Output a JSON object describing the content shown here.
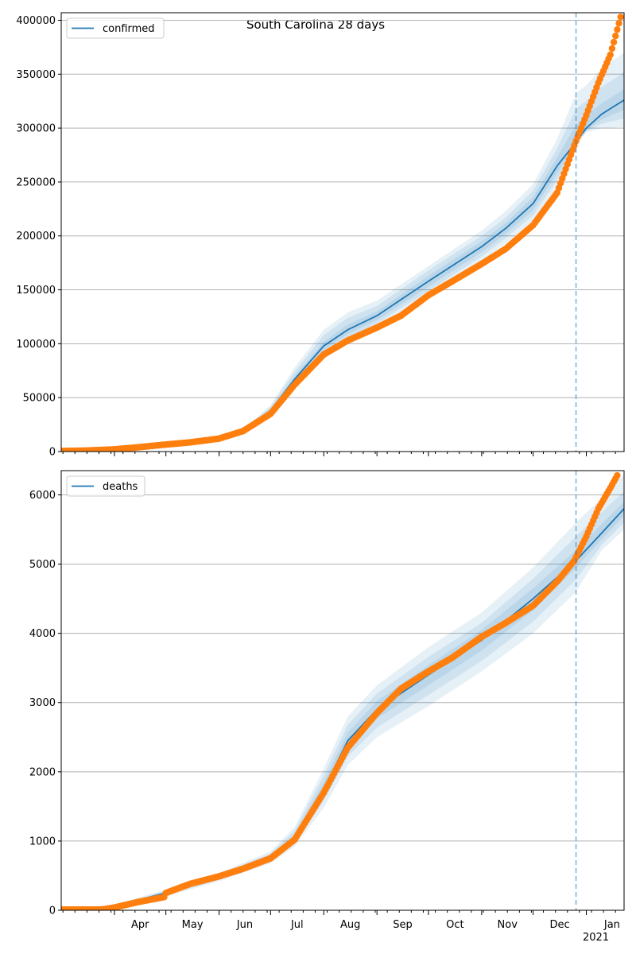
{
  "figure": {
    "suptitle": "South Carolina 28 days"
  },
  "chart_data": [
    {
      "type": "line",
      "legend": {
        "label": "confirmed",
        "placement": "upper-left"
      },
      "xlim": [
        "2020-03-01",
        "2021-01-23"
      ],
      "ylim": [
        0,
        407000
      ],
      "yticks": [
        0,
        50000,
        100000,
        150000,
        200000,
        250000,
        300000,
        350000,
        400000
      ],
      "ytick_labels": [
        "0",
        "50000",
        "100000",
        "150000",
        "200000",
        "250000",
        "300000",
        "350000",
        "400000"
      ],
      "grid": "y",
      "forecast_start": "2020-12-26",
      "model": {
        "color": "#1f77b4",
        "dates": [
          "2020-03-01",
          "2020-04-01",
          "2020-05-01",
          "2020-06-01",
          "2020-06-15",
          "2020-07-01",
          "2020-07-15",
          "2020-08-01",
          "2020-08-15",
          "2020-09-01",
          "2020-10-01",
          "2020-11-01",
          "2020-11-15",
          "2020-12-01",
          "2020-12-15",
          "2020-12-26",
          "2021-01-01",
          "2021-01-10",
          "2021-01-23"
        ],
        "median": [
          500,
          3000,
          6500,
          12500,
          19000,
          38000,
          67000,
          98000,
          113000,
          126000,
          158000,
          190000,
          207000,
          230000,
          265000,
          287000,
          300000,
          313000,
          326000
        ],
        "bands": [
          {
            "lower": [
              400,
              2700,
              6000,
              11500,
              17500,
              33000,
              58000,
              86000,
              101000,
              115000,
              145000,
              177000,
              193000,
              214000,
              246000,
              284000,
              296000,
              300000,
              301000
            ],
            "upper": [
              600,
              3300,
              7000,
              13500,
              20500,
              43000,
              78000,
              113000,
              129000,
              140000,
              172000,
              205000,
              223000,
              248000,
              290000,
              332000,
              340000,
              355000,
              370000
            ]
          },
          {
            "lower": [
              420,
              2780,
              6150,
              11800,
              18000,
              34500,
              61000,
              90000,
              105000,
              119000,
              149000,
              181000,
              198000,
              219000,
              252000,
              285000,
              297000,
              304000,
              309000
            ],
            "upper": [
              580,
              3220,
              6850,
              13200,
              20000,
              41500,
              74000,
              108000,
              124000,
              135000,
              168000,
              200000,
              217000,
              242000,
              281000,
              318000,
              325000,
              338000,
              352000
            ]
          },
          {
            "lower": [
              450,
              2870,
              6300,
              12100,
              18500,
              36000,
              64000,
              94000,
              109000,
              122000,
              153000,
              185000,
              202000,
              224000,
              258000,
              286000,
              298000,
              308000,
              317000
            ],
            "upper": [
              550,
              3130,
              6700,
              12900,
              19500,
              40000,
              70000,
              102000,
              118000,
              130000,
              163000,
              195000,
              212000,
              236000,
              273000,
              303000,
              312000,
              323000,
              336000
            ]
          }
        ]
      },
      "observed": {
        "color": "#ff7f0e",
        "dates": [
          "2020-03-01",
          "2020-03-15",
          "2020-04-01",
          "2020-04-15",
          "2020-05-01",
          "2020-05-15",
          "2020-06-01",
          "2020-06-15",
          "2020-07-01",
          "2020-07-15",
          "2020-08-01",
          "2020-08-15",
          "2020-09-01",
          "2020-09-15",
          "2020-10-01",
          "2020-10-15",
          "2020-11-01",
          "2020-11-15",
          "2020-12-01",
          "2020-12-15",
          "2020-12-25",
          "2021-01-01",
          "2021-01-08",
          "2021-01-15",
          "2021-01-21"
        ],
        "values": [
          500,
          900,
          2000,
          4000,
          6500,
          8500,
          12000,
          19000,
          35000,
          62000,
          90000,
          103000,
          115000,
          126000,
          145000,
          158000,
          174000,
          188000,
          210000,
          240000,
          284000,
          312000,
          342000,
          368000,
          403000
        ]
      }
    },
    {
      "type": "line",
      "legend": {
        "label": "deaths",
        "placement": "upper-left"
      },
      "xlim": [
        "2020-03-01",
        "2021-01-23"
      ],
      "ylim": [
        0,
        6350
      ],
      "yticks": [
        0,
        1000,
        2000,
        3000,
        4000,
        5000,
        6000
      ],
      "ytick_labels": [
        "0",
        "1000",
        "2000",
        "3000",
        "4000",
        "5000",
        "6000"
      ],
      "grid": "y",
      "forecast_start": "2020-12-26",
      "xtick_labels": [
        "Apr",
        "May",
        "Jun",
        "Jul",
        "Aug",
        "Sep",
        "Oct",
        "Nov",
        "Dec",
        "Jan"
      ],
      "xtick_dates": [
        "2020-04-01",
        "2020-05-01",
        "2020-06-01",
        "2020-07-01",
        "2020-08-01",
        "2020-09-01",
        "2020-10-01",
        "2020-11-01",
        "2020-12-01",
        "2021-01-01"
      ],
      "year_label": "2021",
      "model": {
        "color": "#1f77b4",
        "dates": [
          "2020-03-01",
          "2020-04-01",
          "2020-05-01",
          "2020-06-01",
          "2020-07-01",
          "2020-07-15",
          "2020-08-01",
          "2020-08-15",
          "2020-09-01",
          "2020-10-01",
          "2020-11-01",
          "2020-12-01",
          "2020-12-26",
          "2021-01-10",
          "2021-01-23"
        ],
        "median": [
          10,
          60,
          250,
          480,
          760,
          1050,
          1750,
          2450,
          2900,
          3400,
          3900,
          4500,
          5050,
          5450,
          5800
        ],
        "bands": [
          {
            "lower": [
              5,
              40,
              200,
              420,
              680,
              920,
              1480,
              2100,
              2500,
              2950,
              3450,
              4000,
              4600,
              5200,
              5500
            ],
            "upper": [
              20,
              80,
              300,
              540,
              850,
              1200,
              2050,
              2800,
              3250,
              3800,
              4300,
              4950,
              5600,
              5950,
              6300
            ]
          },
          {
            "lower": [
              6,
              48,
              218,
              440,
              708,
              965,
              1580,
              2220,
              2640,
              3110,
              3600,
              4170,
              4780,
              5280,
              5600
            ],
            "upper": [
              17,
              74,
              282,
              520,
              820,
              1150,
              1950,
              2680,
              3130,
              3660,
              4150,
              4790,
              5400,
              5750,
              6050
            ]
          },
          {
            "lower": [
              8,
              53,
              232,
              458,
              732,
              1005,
              1660,
              2330,
              2770,
              3250,
              3750,
              4330,
              4950,
              5360,
              5700
            ],
            "upper": [
              14,
              68,
              268,
              502,
              790,
              1100,
              1850,
              2570,
              3020,
              3540,
              4050,
              4650,
              5200,
              5580,
              5900
            ]
          }
        ]
      },
      "observed": {
        "color": "#ff7f0e",
        "dates": [
          "2020-03-01",
          "2020-03-25",
          "2020-04-01",
          "2020-04-15",
          "2020-04-30",
          "2020-05-01",
          "2020-05-15",
          "2020-06-01",
          "2020-06-15",
          "2020-07-01",
          "2020-07-15",
          "2020-08-01",
          "2020-08-15",
          "2020-09-01",
          "2020-09-15",
          "2020-10-01",
          "2020-10-15",
          "2020-11-01",
          "2020-11-15",
          "2020-12-01",
          "2020-12-15",
          "2020-12-25",
          "2021-01-01",
          "2021-01-08",
          "2021-01-15",
          "2021-01-19"
        ],
        "values": [
          10,
          10,
          40,
          120,
          190,
          250,
          380,
          490,
          600,
          750,
          1020,
          1700,
          2350,
          2850,
          3200,
          3450,
          3650,
          3950,
          4150,
          4400,
          4750,
          5050,
          5400,
          5800,
          6100,
          6280
        ]
      }
    }
  ]
}
